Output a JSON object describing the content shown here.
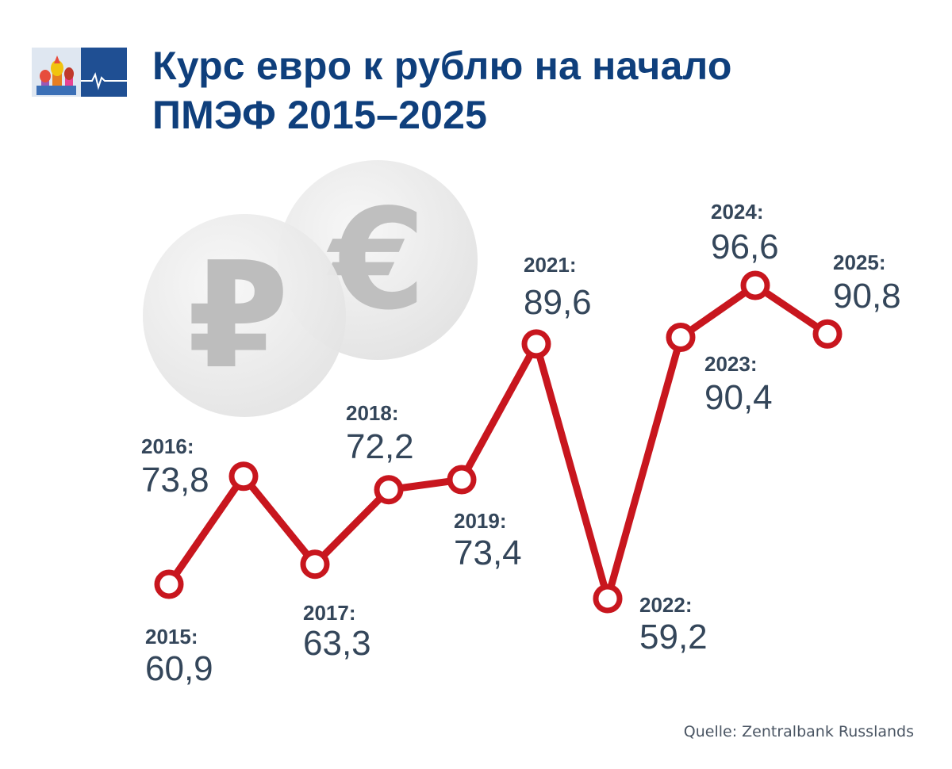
{
  "title_lines": [
    "Курс евро к рублю на начало",
    "ПМЭФ 2015–2025"
  ],
  "source": "Quelle: Zentralbank Russlands",
  "symbols": {
    "ruble": "₽",
    "euro": "€"
  },
  "colors": {
    "title": "#0f3f7c",
    "line": "#c8161e",
    "text": "#34465a",
    "coin": "#e6e6e6",
    "symbol": "#bdbdbd"
  },
  "chart_data": {
    "type": "line",
    "title": "Курс евро к рублю на начало ПМЭФ 2015–2025",
    "ylim": [
      55,
      100
    ],
    "grid": false,
    "points": [
      {
        "year": "2015",
        "year_label": "2015:",
        "value": 60.9,
        "value_label": "60,9"
      },
      {
        "year": "2016",
        "year_label": "2016:",
        "value": 73.8,
        "value_label": "73,8"
      },
      {
        "year": "2017",
        "year_label": "2017:",
        "value": 63.3,
        "value_label": "63,3"
      },
      {
        "year": "2018",
        "year_label": "2018:",
        "value": 72.2,
        "value_label": "72,2"
      },
      {
        "year": "2019",
        "year_label": "2019:",
        "value": 73.4,
        "value_label": "73,4"
      },
      {
        "year": "2021",
        "year_label": "2021:",
        "value": 89.6,
        "value_label": "89,6"
      },
      {
        "year": "2022",
        "year_label": "2022:",
        "value": 59.2,
        "value_label": "59,2"
      },
      {
        "year": "2023",
        "year_label": "2023:",
        "value": 90.4,
        "value_label": "90,4"
      },
      {
        "year": "2024",
        "year_label": "2024:",
        "value": 96.6,
        "value_label": "96,6"
      },
      {
        "year": "2025",
        "year_label": "2025:",
        "value": 90.8,
        "value_label": "90,8"
      }
    ]
  }
}
